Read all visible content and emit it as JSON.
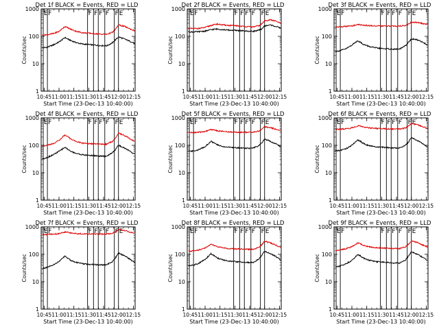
{
  "colors": {
    "events": "#000000",
    "lld": "#dd0000",
    "axes": "#000000",
    "background": "#ffffff"
  },
  "chart_data": [
    {
      "type": "line",
      "title": "Det 1f BLACK = Events, RED = LLD",
      "xlabel": "Start Time (23-Dec-13 10:40:00)",
      "ylabel": "Counts/sec",
      "ylog": true,
      "ylim": [
        1,
        1000
      ],
      "yticks": [
        "1",
        "10",
        "100",
        "1000"
      ],
      "xlim": [
        10.7,
        12.28
      ],
      "xticks": [
        "10:45",
        "11:00",
        "11:15",
        "11:30",
        "11:45",
        "12:00",
        "12:15"
      ],
      "markers": [
        {
          "x": 10.735,
          "label": "E"
        },
        {
          "x": 10.805,
          "label": "F"
        },
        {
          "x": 11.48,
          "label": "F"
        },
        {
          "x": 11.58,
          "label": "F"
        },
        {
          "x": 11.66,
          "label": "F"
        },
        {
          "x": 11.77,
          "label": "F"
        },
        {
          "x": 11.93,
          "label": "F"
        },
        {
          "x": 12.0,
          "label": "E"
        }
      ],
      "x": [
        10.72,
        10.8,
        10.9,
        11.0,
        11.1,
        11.2,
        11.3,
        11.4,
        11.5,
        11.6,
        11.7,
        11.8,
        11.9,
        11.95,
        12.0,
        12.1,
        12.2,
        12.27
      ],
      "series": [
        {
          "values": [
            38,
            40,
            48,
            62,
            90,
            70,
            58,
            52,
            50,
            48,
            46,
            45,
            58,
            75,
            95,
            80,
            65,
            55
          ]
        },
        {
          "values": [
            110,
            115,
            125,
            150,
            230,
            180,
            150,
            135,
            130,
            125,
            120,
            118,
            140,
            180,
            260,
            230,
            185,
            160
          ]
        }
      ]
    },
    {
      "type": "line",
      "title": "Det 2f BLACK = Events, RED = LLD",
      "xlabel": "Start Time (23-Dec-13 10:40:00)",
      "ylabel": "Counts/sec",
      "ylog": true,
      "ylim": [
        1,
        1000
      ],
      "yticks": [
        "1",
        "10",
        "100",
        "1000"
      ],
      "xlim": [
        10.7,
        12.28
      ],
      "xticks": [
        "10:45",
        "11:00",
        "11:15",
        "11:30",
        "11:45",
        "12:00",
        "12:15"
      ],
      "markers": [
        {
          "x": 10.735,
          "label": "E"
        },
        {
          "x": 10.805,
          "label": "F"
        },
        {
          "x": 11.48,
          "label": "F"
        },
        {
          "x": 11.58,
          "label": "F"
        },
        {
          "x": 11.66,
          "label": "F"
        },
        {
          "x": 11.77,
          "label": "F"
        },
        {
          "x": 11.93,
          "label": "F"
        },
        {
          "x": 12.0,
          "label": "E"
        }
      ],
      "x": [
        10.72,
        10.8,
        10.9,
        11.0,
        11.1,
        11.2,
        11.3,
        11.4,
        11.5,
        11.6,
        11.7,
        11.8,
        11.9,
        11.95,
        12.0,
        12.1,
        12.2,
        12.27
      ],
      "series": [
        {
          "values": [
            145,
            145,
            148,
            155,
            175,
            185,
            175,
            168,
            165,
            160,
            155,
            152,
            165,
            185,
            240,
            260,
            225,
            200
          ]
        },
        {
          "values": [
            190,
            192,
            195,
            210,
            250,
            280,
            260,
            250,
            245,
            235,
            225,
            220,
            240,
            280,
            370,
            400,
            350,
            300
          ]
        }
      ]
    },
    {
      "type": "line",
      "title": "Det 3f BLACK = Events, RED = LLD",
      "xlabel": "Start Time (23-Dec-13 10:40:00)",
      "ylabel": "Counts/sec",
      "ylog": true,
      "ylim": [
        1,
        1000
      ],
      "yticks": [
        "1",
        "10",
        "100",
        "1000"
      ],
      "xlim": [
        10.7,
        12.28
      ],
      "xticks": [
        "10:45",
        "11:00",
        "11:15",
        "11:30",
        "11:45",
        "12:00",
        "12:15"
      ],
      "markers": [
        {
          "x": 10.735,
          "label": "E"
        },
        {
          "x": 10.805,
          "label": "F"
        },
        {
          "x": 11.48,
          "label": "F"
        },
        {
          "x": 11.58,
          "label": "F"
        },
        {
          "x": 11.66,
          "label": "F"
        },
        {
          "x": 11.77,
          "label": "F"
        },
        {
          "x": 11.93,
          "label": "F"
        },
        {
          "x": 12.0,
          "label": "E"
        }
      ],
      "x": [
        10.72,
        10.8,
        10.9,
        11.0,
        11.1,
        11.2,
        11.3,
        11.4,
        11.5,
        11.6,
        11.7,
        11.8,
        11.9,
        11.95,
        12.0,
        12.1,
        12.2,
        12.27
      ],
      "series": [
        {
          "values": [
            28,
            30,
            35,
            48,
            70,
            50,
            42,
            38,
            36,
            35,
            34,
            34,
            45,
            60,
            80,
            75,
            60,
            48
          ]
        },
        {
          "values": [
            220,
            222,
            230,
            240,
            270,
            255,
            245,
            240,
            238,
            236,
            235,
            236,
            250,
            280,
            330,
            320,
            290,
            270
          ]
        }
      ]
    },
    {
      "type": "line",
      "title": "Det 4f BLACK = Events, RED = LLD",
      "xlabel": "Start Time (23-Dec-13 10:40:00)",
      "ylabel": "Counts/sec",
      "ylog": true,
      "ylim": [
        1,
        1000
      ],
      "yticks": [
        "1",
        "10",
        "100",
        "1000"
      ],
      "xlim": [
        10.7,
        12.28
      ],
      "xticks": [
        "10:45",
        "11:00",
        "11:15",
        "11:30",
        "11:45",
        "12:00",
        "12:15"
      ],
      "markers": [
        {
          "x": 10.735,
          "label": "E"
        },
        {
          "x": 10.805,
          "label": "F"
        },
        {
          "x": 11.48,
          "label": "F"
        },
        {
          "x": 11.58,
          "label": "F"
        },
        {
          "x": 11.66,
          "label": "F"
        },
        {
          "x": 11.77,
          "label": "F"
        },
        {
          "x": 11.93,
          "label": "F"
        },
        {
          "x": 12.0,
          "label": "E"
        }
      ],
      "x": [
        10.72,
        10.8,
        10.9,
        11.0,
        11.1,
        11.2,
        11.3,
        11.4,
        11.5,
        11.6,
        11.7,
        11.8,
        11.9,
        11.95,
        12.0,
        12.1,
        12.2,
        12.27
      ],
      "series": [
        {
          "values": [
            32,
            36,
            45,
            60,
            85,
            60,
            50,
            45,
            43,
            42,
            40,
            40,
            55,
            70,
            100,
            80,
            60,
            48
          ]
        },
        {
          "values": [
            95,
            100,
            115,
            150,
            240,
            170,
            135,
            120,
            115,
            112,
            110,
            110,
            140,
            180,
            280,
            230,
            170,
            140
          ]
        }
      ]
    },
    {
      "type": "line",
      "title": "Det 5f BLACK = Events, RED = LLD",
      "xlabel": "Start Time (23-Dec-13 10:40:00)",
      "ylabel": "Counts/sec",
      "ylog": true,
      "ylim": [
        1,
        1000
      ],
      "yticks": [
        "1",
        "10",
        "100",
        "1000"
      ],
      "xlim": [
        10.7,
        12.28
      ],
      "xticks": [
        "10:45",
        "11:00",
        "11:15",
        "11:30",
        "11:45",
        "12:00",
        "12:15"
      ],
      "markers": [
        {
          "x": 10.735,
          "label": "E"
        },
        {
          "x": 10.805,
          "label": "F"
        },
        {
          "x": 11.48,
          "label": "F"
        },
        {
          "x": 11.58,
          "label": "F"
        },
        {
          "x": 11.66,
          "label": "F"
        },
        {
          "x": 11.77,
          "label": "F"
        },
        {
          "x": 11.93,
          "label": "F"
        },
        {
          "x": 12.0,
          "label": "E"
        }
      ],
      "x": [
        10.72,
        10.8,
        10.9,
        11.0,
        11.1,
        11.2,
        11.3,
        11.4,
        11.5,
        11.6,
        11.7,
        11.8,
        11.9,
        11.95,
        12.0,
        12.1,
        12.2,
        12.27
      ],
      "series": [
        {
          "values": [
            60,
            62,
            70,
            90,
            140,
            105,
            90,
            85,
            82,
            80,
            78,
            78,
            95,
            120,
            170,
            140,
            110,
            90
          ]
        },
        {
          "values": [
            290,
            292,
            300,
            320,
            380,
            340,
            320,
            310,
            305,
            300,
            298,
            298,
            330,
            380,
            480,
            440,
            380,
            340
          ]
        }
      ]
    },
    {
      "type": "line",
      "title": "Det 6f BLACK = Events, RED = LLD",
      "xlabel": "Start Time (23-Dec-13 10:40:00)",
      "ylabel": "Counts/sec",
      "ylog": true,
      "ylim": [
        1,
        1000
      ],
      "yticks": [
        "1",
        "10",
        "100",
        "1000"
      ],
      "xlim": [
        10.7,
        12.28
      ],
      "xticks": [
        "10:45",
        "11:00",
        "11:15",
        "11:30",
        "11:45",
        "12:00",
        "12:15"
      ],
      "markers": [
        {
          "x": 10.735,
          "label": "E"
        },
        {
          "x": 10.805,
          "label": "F"
        },
        {
          "x": 11.48,
          "label": "F"
        },
        {
          "x": 11.58,
          "label": "F"
        },
        {
          "x": 11.66,
          "label": "F"
        },
        {
          "x": 11.77,
          "label": "F"
        },
        {
          "x": 11.93,
          "label": "F"
        },
        {
          "x": 12.0,
          "label": "E"
        }
      ],
      "x": [
        10.72,
        10.8,
        10.9,
        11.0,
        11.1,
        11.2,
        11.3,
        11.4,
        11.5,
        11.6,
        11.7,
        11.8,
        11.9,
        11.95,
        12.0,
        12.1,
        12.2,
        12.27
      ],
      "series": [
        {
          "values": [
            62,
            65,
            75,
            100,
            160,
            115,
            95,
            88,
            85,
            82,
            80,
            80,
            100,
            130,
            190,
            150,
            110,
            88
          ]
        },
        {
          "values": [
            380,
            385,
            400,
            430,
            520,
            460,
            430,
            415,
            408,
            400,
            395,
            395,
            430,
            500,
            620,
            560,
            470,
            420
          ]
        }
      ]
    },
    {
      "type": "line",
      "title": "Det 7f BLACK = Events, RED = LLD",
      "xlabel": "Start Time (23-Dec-13 10:40:00)",
      "ylabel": "Counts/sec",
      "ylog": true,
      "ylim": [
        1,
        1000
      ],
      "yticks": [
        "1",
        "10",
        "100",
        "1000"
      ],
      "xlim": [
        10.7,
        12.28
      ],
      "xticks": [
        "10:45",
        "11:00",
        "11:15",
        "11:30",
        "11:45",
        "12:00",
        "12:15"
      ],
      "markers": [
        {
          "x": 10.735,
          "label": "E"
        },
        {
          "x": 10.805,
          "label": "F"
        },
        {
          "x": 11.48,
          "label": "F"
        },
        {
          "x": 11.58,
          "label": "F"
        },
        {
          "x": 11.66,
          "label": "F"
        },
        {
          "x": 11.77,
          "label": "F"
        },
        {
          "x": 11.93,
          "label": "F"
        },
        {
          "x": 12.0,
          "label": "E"
        }
      ],
      "x": [
        10.72,
        10.8,
        10.9,
        11.0,
        11.1,
        11.2,
        11.3,
        11.4,
        11.5,
        11.6,
        11.7,
        11.8,
        11.9,
        11.95,
        12.0,
        12.1,
        12.2,
        12.27
      ],
      "series": [
        {
          "values": [
            30,
            33,
            40,
            55,
            85,
            60,
            50,
            45,
            43,
            42,
            41,
            41,
            55,
            75,
            110,
            90,
            65,
            50
          ]
        },
        {
          "values": [
            520,
            525,
            540,
            570,
            650,
            600,
            570,
            560,
            555,
            550,
            548,
            548,
            580,
            650,
            800,
            740,
            640,
            580
          ]
        }
      ]
    },
    {
      "type": "line",
      "title": "Det 8f BLACK = Events, RED = LLD",
      "xlabel": "Start Time (23-Dec-13 10:40:00)",
      "ylabel": "Counts/sec",
      "ylog": true,
      "ylim": [
        1,
        1000
      ],
      "yticks": [
        "1",
        "10",
        "100",
        "1000"
      ],
      "xlim": [
        10.7,
        12.28
      ],
      "xticks": [
        "10:45",
        "11:00",
        "11:15",
        "11:30",
        "11:45",
        "12:00",
        "12:15"
      ],
      "markers": [
        {
          "x": 10.735,
          "label": "E"
        },
        {
          "x": 10.805,
          "label": "F"
        },
        {
          "x": 11.48,
          "label": "F"
        },
        {
          "x": 11.58,
          "label": "F"
        },
        {
          "x": 11.66,
          "label": "F"
        },
        {
          "x": 11.77,
          "label": "F"
        },
        {
          "x": 11.93,
          "label": "F"
        },
        {
          "x": 12.0,
          "label": "E"
        }
      ],
      "x": [
        10.72,
        10.8,
        10.9,
        11.0,
        11.1,
        11.2,
        11.3,
        11.4,
        11.5,
        11.6,
        11.7,
        11.8,
        11.9,
        11.95,
        12.0,
        12.1,
        12.2,
        12.27
      ],
      "series": [
        {
          "values": [
            38,
            40,
            48,
            65,
            105,
            75,
            62,
            56,
            54,
            52,
            50,
            50,
            65,
            90,
            130,
            105,
            80,
            62
          ]
        },
        {
          "values": [
            130,
            135,
            145,
            170,
            230,
            190,
            170,
            162,
            158,
            155,
            152,
            152,
            175,
            220,
            300,
            260,
            210,
            180
          ]
        }
      ]
    },
    {
      "type": "line",
      "title": "Det 9f BLACK = Events, RED = LLD",
      "xlabel": "Start Time (23-Dec-13 10:40:00)",
      "ylabel": "Counts/sec",
      "ylog": true,
      "ylim": [
        1,
        1000
      ],
      "yticks": [
        "1",
        "10",
        "100",
        "1000"
      ],
      "xlim": [
        10.7,
        12.28
      ],
      "xticks": [
        "10:45",
        "11:00",
        "11:15",
        "11:30",
        "11:45",
        "12:00",
        "12:15"
      ],
      "markers": [
        {
          "x": 10.735,
          "label": "E"
        },
        {
          "x": 10.805,
          "label": "F"
        },
        {
          "x": 11.48,
          "label": "F"
        },
        {
          "x": 11.58,
          "label": "F"
        },
        {
          "x": 11.66,
          "label": "F"
        },
        {
          "x": 11.77,
          "label": "F"
        },
        {
          "x": 11.93,
          "label": "F"
        },
        {
          "x": 12.0,
          "label": "E"
        }
      ],
      "x": [
        10.72,
        10.8,
        10.9,
        11.0,
        11.1,
        11.2,
        11.3,
        11.4,
        11.5,
        11.6,
        11.7,
        11.8,
        11.9,
        11.95,
        12.0,
        12.1,
        12.2,
        12.27
      ],
      "series": [
        {
          "values": [
            35,
            37,
            45,
            60,
            100,
            72,
            60,
            54,
            52,
            50,
            48,
            48,
            62,
            85,
            125,
            100,
            75,
            58
          ]
        },
        {
          "values": [
            140,
            145,
            160,
            190,
            260,
            210,
            185,
            175,
            170,
            165,
            162,
            162,
            185,
            230,
            310,
            270,
            215,
            185
          ]
        }
      ]
    }
  ]
}
